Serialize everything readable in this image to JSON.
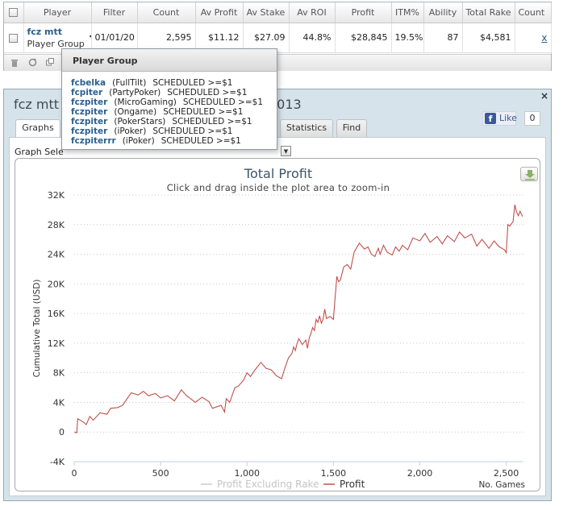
{
  "grid": {
    "columns": [
      "Player",
      "Filter",
      "Count",
      "Av Profit",
      "Av Stake",
      "Av ROI",
      "Profit",
      "ITM%",
      "Ability",
      "Total Rake",
      "Count"
    ],
    "row": {
      "player_name": "fcz mtt",
      "player_sub": "Player Group",
      "filter": "01/01/20",
      "count": "2,595",
      "av_profit": "$11.12",
      "av_stake": "$27.09",
      "av_roi": "44.8%",
      "profit": "$28,845",
      "itm": "19.5%",
      "ability": "87",
      "total_rake": "$4,581",
      "link": "x"
    }
  },
  "popup": {
    "title": "Player Group",
    "entries": [
      {
        "name": "fcbelka",
        "site": "(FullTilt)",
        "status": "SCHEDULED >=$1"
      },
      {
        "name": "fcpiter",
        "site": "(PartyPoker)",
        "status": "SCHEDULED >=$1"
      },
      {
        "name": "fczpiter",
        "site": "(MicroGaming)",
        "status": "SCHEDULED >=$1"
      },
      {
        "name": "fczpiter",
        "site": "(Ongame)",
        "status": "SCHEDULED >=$1"
      },
      {
        "name": "fczpiter",
        "site": "(PokerStars)",
        "status": "SCHEDULED >=$1"
      },
      {
        "name": "fczpiter",
        "site": "(iPoker)",
        "status": "SCHEDULED >=$1"
      },
      {
        "name": "fczpiterrr",
        "site": "(iPoker)",
        "status": "SCHEDULED >=$1"
      }
    ]
  },
  "window": {
    "title_left": "fcz mtt (",
    "title_right": "2013",
    "like_label": "Like",
    "like_count": "0",
    "close_label": "×",
    "tabs": [
      "Graphs",
      "Statistics",
      "Find"
    ],
    "graph_select_label": "Graph Sele"
  },
  "chart_data": {
    "type": "line",
    "title": "Total Profit",
    "subtitle": "Click and drag inside the plot area to zoom-in",
    "xlabel": "No. Games",
    "ylabel": "Cumulative Total (USD)",
    "xlim": [
      0,
      2600
    ],
    "ylim": [
      -4000,
      32000
    ],
    "xticks": [
      0,
      500,
      1000,
      1500,
      2000,
      2500
    ],
    "xtick_labels": [
      "0",
      "500",
      "1,000",
      "1,500",
      "2,000",
      "2,500"
    ],
    "yticks": [
      -4000,
      0,
      4000,
      8000,
      12000,
      16000,
      20000,
      24000,
      28000,
      32000
    ],
    "ytick_labels": [
      "-4K",
      "0",
      "4K",
      "8K",
      "12K",
      "16K",
      "20K",
      "24K",
      "28K",
      "32K"
    ],
    "grid": true,
    "legend_position": "bottom",
    "series": [
      {
        "name": "Profit Excluding Rake",
        "color": "#cccccc",
        "visible": false,
        "x": [],
        "y": []
      },
      {
        "name": "Profit",
        "color": "#c0504d",
        "visible": true,
        "x": [
          0,
          15,
          20,
          50,
          70,
          90,
          110,
          150,
          190,
          210,
          250,
          280,
          300,
          330,
          370,
          400,
          430,
          470,
          500,
          540,
          580,
          620,
          650,
          680,
          700,
          740,
          780,
          800,
          850,
          870,
          880,
          900,
          930,
          950,
          980,
          1000,
          1020,
          1050,
          1080,
          1110,
          1140,
          1170,
          1200,
          1220,
          1240,
          1260,
          1270,
          1280,
          1290,
          1300,
          1320,
          1340,
          1350,
          1360,
          1370,
          1380,
          1390,
          1400,
          1410,
          1420,
          1430,
          1440,
          1450,
          1460,
          1480,
          1500,
          1520,
          1530,
          1540,
          1560,
          1580,
          1600,
          1620,
          1650,
          1680,
          1700,
          1720,
          1740,
          1760,
          1770,
          1790,
          1810,
          1840,
          1860,
          1880,
          1900,
          1930,
          1960,
          2000,
          2030,
          2060,
          2100,
          2130,
          2160,
          2200,
          2230,
          2260,
          2300,
          2330,
          2360,
          2400,
          2430,
          2460,
          2490,
          2500,
          2510,
          2520,
          2540,
          2550,
          2560,
          2570,
          2580,
          2595
        ],
        "y": [
          0,
          -100,
          1800,
          1400,
          1000,
          2100,
          1600,
          2600,
          2400,
          3200,
          3300,
          3600,
          4300,
          5300,
          5000,
          5500,
          4900,
          5200,
          4600,
          4900,
          4200,
          5700,
          4900,
          4400,
          4000,
          4700,
          4100,
          3200,
          3600,
          2700,
          4500,
          4000,
          6000,
          6200,
          7000,
          8000,
          7500,
          8500,
          9400,
          8600,
          8400,
          7600,
          7200,
          8700,
          10000,
          10600,
          11500,
          11000,
          12000,
          12600,
          11800,
          12400,
          11300,
          12700,
          13300,
          14100,
          13700,
          15200,
          14800,
          15700,
          14700,
          15200,
          16600,
          15300,
          15600,
          15200,
          21000,
          20300,
          20500,
          22300,
          22600,
          22000,
          24300,
          25500,
          24700,
          25000,
          24000,
          23700,
          24800,
          24000,
          25200,
          24300,
          23900,
          25000,
          24400,
          25200,
          24600,
          26200,
          25800,
          26800,
          25600,
          26400,
          25400,
          26500,
          25700,
          27000,
          26200,
          26700,
          25100,
          26000,
          24800,
          25800,
          25000,
          24600,
          24200,
          28000,
          27800,
          28400,
          30700,
          29700,
          29200,
          29800,
          29100
        ]
      }
    ]
  },
  "colors": {
    "link": "#2a5f8f",
    "profit_line": "#c0504d",
    "window_bg": "#d7e3ea",
    "chart_title": "#3f5566"
  },
  "icons": {
    "player_type": "poker-hat-icon",
    "toolbar": [
      "trash-icon",
      "refresh-icon",
      "copy-icon"
    ],
    "export": "download-icon",
    "facebook": "facebook-f-icon"
  }
}
